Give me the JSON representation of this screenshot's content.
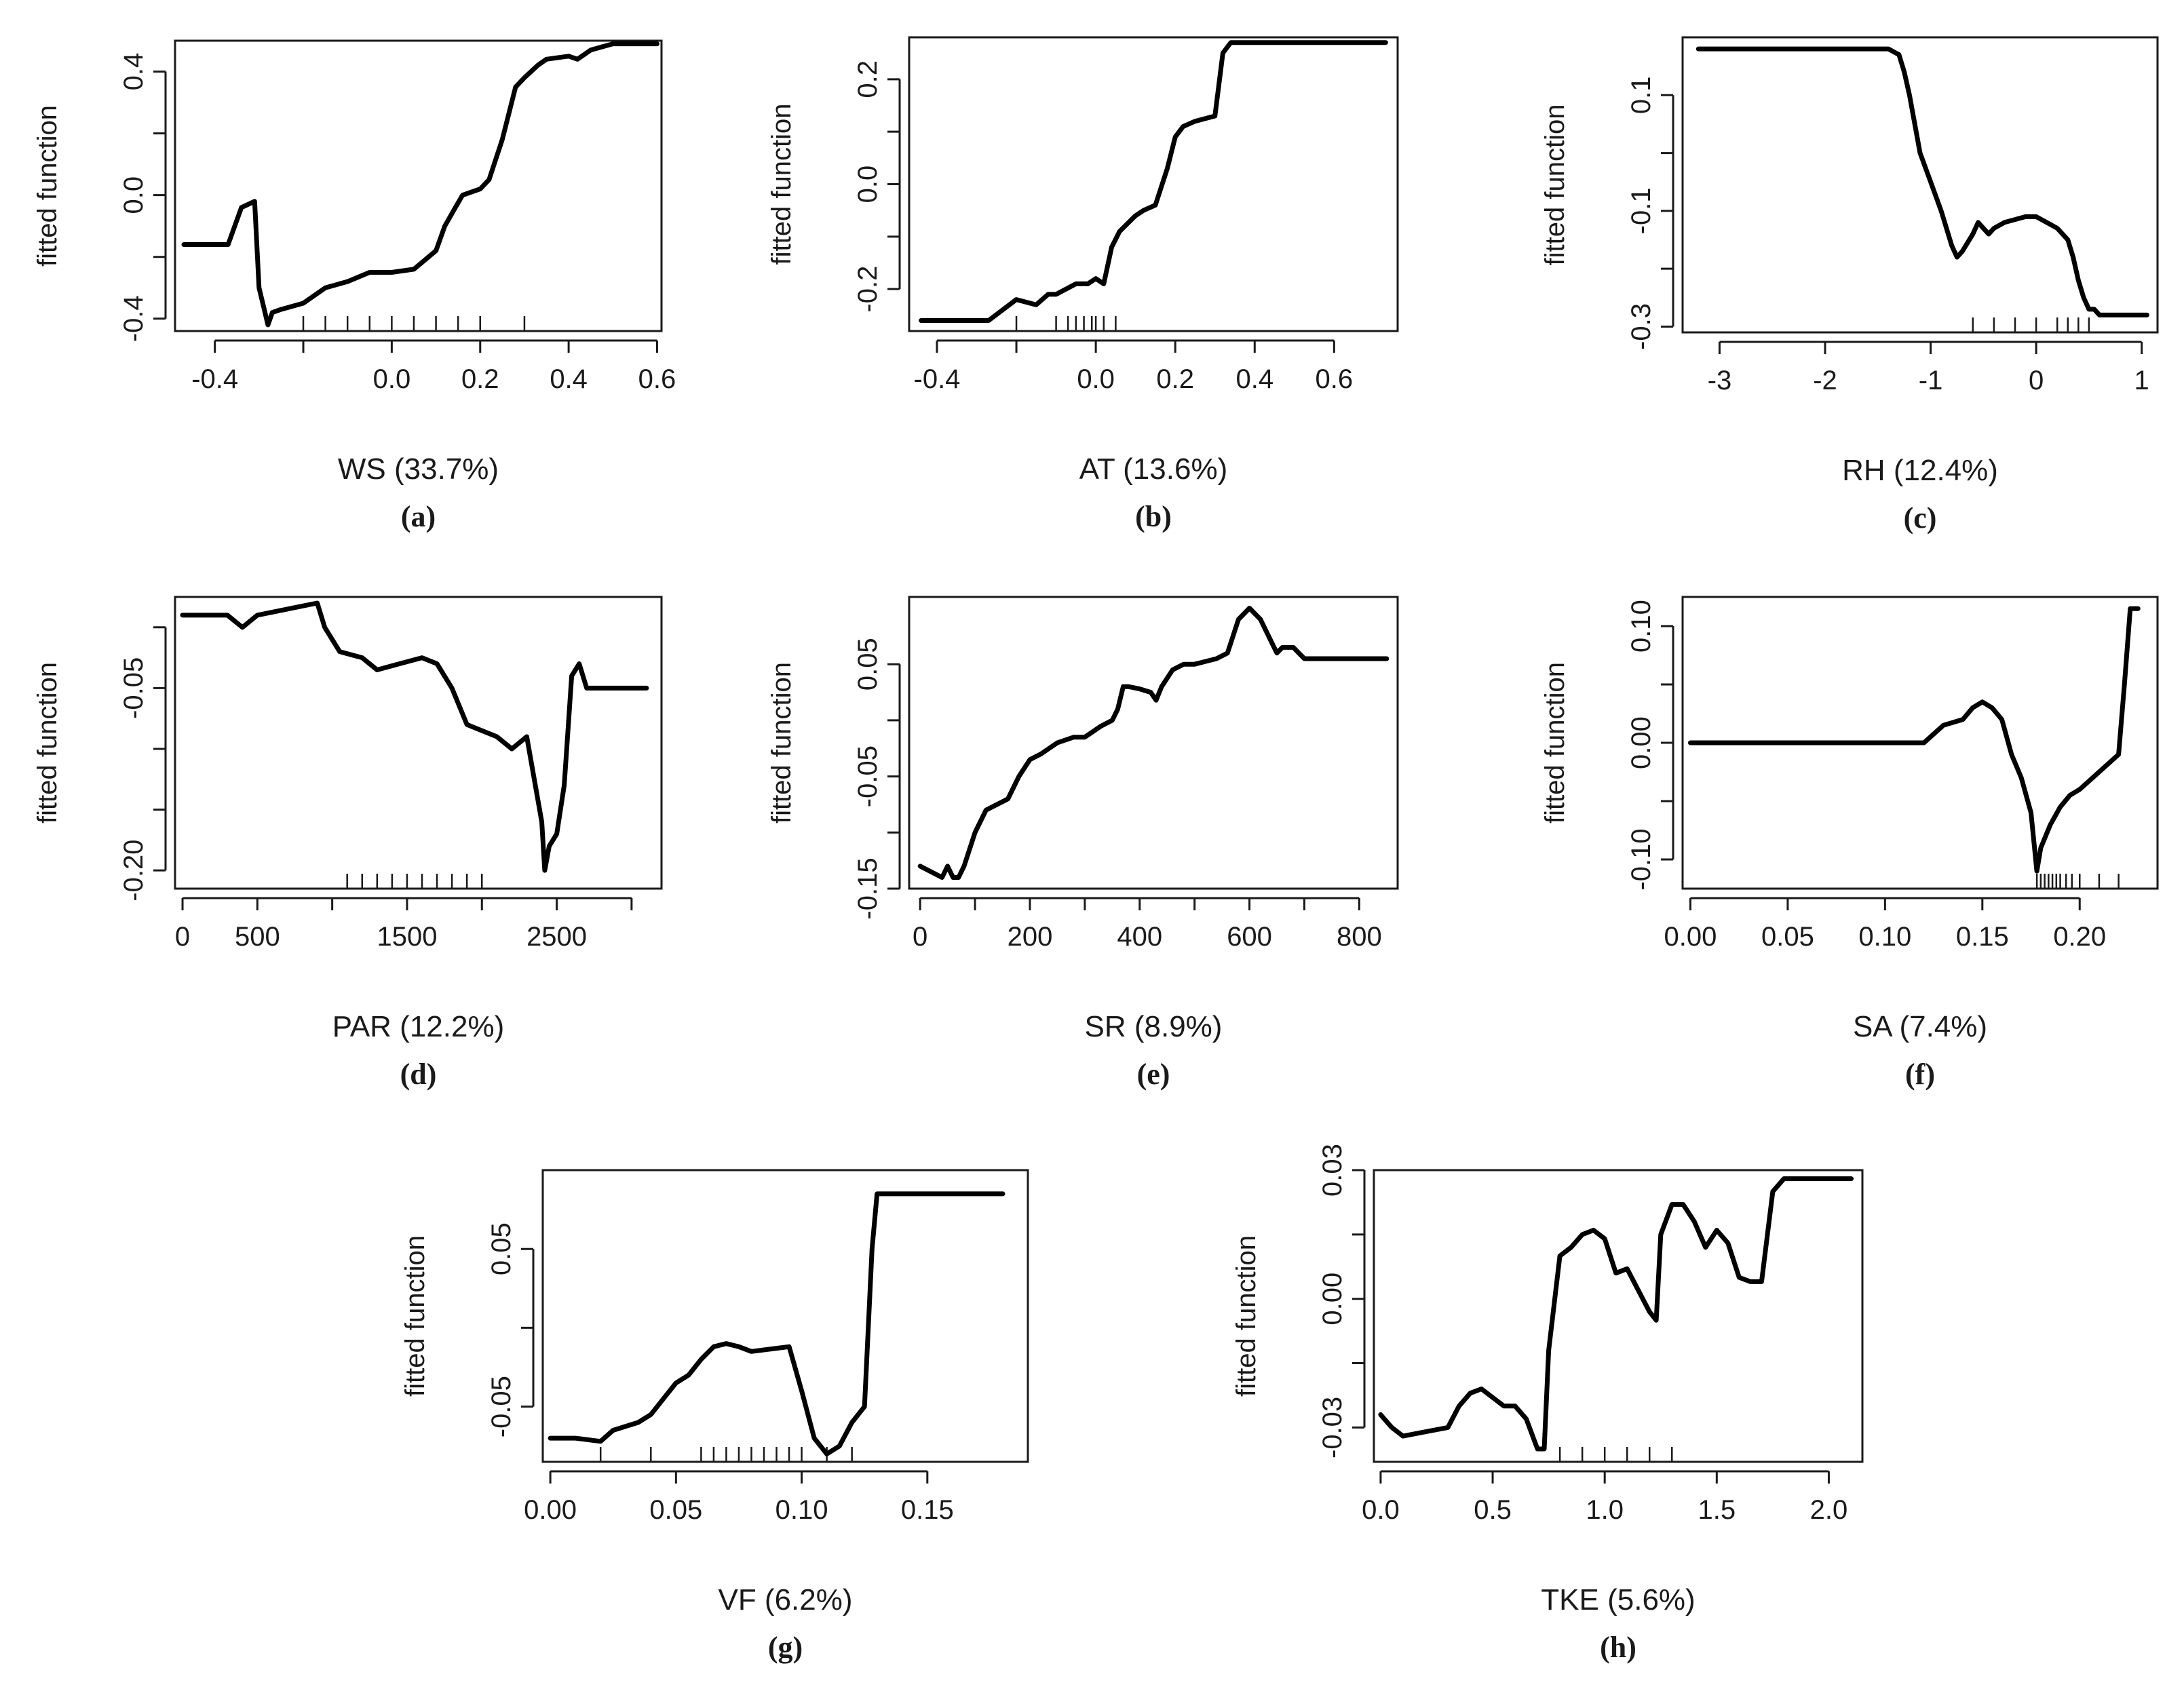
{
  "colors": {
    "line": "#000000",
    "axis": "#1a1a1a",
    "background": "#ffffff"
  },
  "chart_data": [
    {
      "type": "line",
      "panel_label": "(a)",
      "xlabel": "WS  (33.7%)",
      "ylabel": "fitted function",
      "xlim": [
        -0.49,
        0.61
      ],
      "ylim": [
        -0.44,
        0.5
      ],
      "xticks": [
        -0.4,
        -0.2,
        0.0,
        0.2,
        0.4,
        0.6
      ],
      "xtick_labels": [
        "-0.4",
        "",
        "0.0",
        "0.2",
        "0.4",
        "0.6"
      ],
      "yticks": [
        -0.4,
        -0.2,
        0.0,
        0.2,
        0.4
      ],
      "ytick_labels": [
        "-0.4",
        "",
        "0.0",
        "",
        "0.4"
      ],
      "rug": [
        -0.2,
        -0.15,
        -0.1,
        -0.05,
        0.0,
        0.05,
        0.1,
        0.15,
        0.2,
        0.3
      ],
      "x": [
        -0.47,
        -0.37,
        -0.34,
        -0.31,
        -0.3,
        -0.29,
        -0.28,
        -0.27,
        -0.25,
        -0.2,
        -0.15,
        -0.1,
        -0.05,
        0.0,
        0.05,
        0.1,
        0.12,
        0.14,
        0.16,
        0.2,
        0.22,
        0.25,
        0.28,
        0.3,
        0.33,
        0.35,
        0.4,
        0.42,
        0.45,
        0.5,
        0.6
      ],
      "y": [
        -0.16,
        -0.16,
        -0.04,
        -0.02,
        -0.3,
        -0.36,
        -0.42,
        -0.38,
        -0.37,
        -0.35,
        -0.3,
        -0.28,
        -0.25,
        -0.25,
        -0.24,
        -0.18,
        -0.1,
        -0.05,
        0.0,
        0.02,
        0.05,
        0.18,
        0.35,
        0.38,
        0.42,
        0.44,
        0.45,
        0.44,
        0.47,
        0.49,
        0.49
      ]
    },
    {
      "type": "line",
      "panel_label": "(b)",
      "xlabel": "AT  (13.6%)",
      "ylabel": "fitted function",
      "xlim": [
        -0.47,
        0.76
      ],
      "ylim": [
        -0.28,
        0.28
      ],
      "xticks": [
        -0.4,
        -0.2,
        0.0,
        0.2,
        0.4,
        0.6
      ],
      "xtick_labels": [
        "-0.4",
        "",
        "0.0",
        "0.2",
        "0.4",
        "0.6"
      ],
      "yticks": [
        -0.2,
        -0.1,
        0.0,
        0.1,
        0.2
      ],
      "ytick_labels": [
        "-0.2",
        "",
        "0.0",
        "",
        "0.2"
      ],
      "rug": [
        -0.2,
        -0.1,
        -0.07,
        -0.05,
        -0.03,
        -0.01,
        0.0,
        0.02,
        0.05
      ],
      "x": [
        -0.44,
        -0.27,
        -0.2,
        -0.15,
        -0.12,
        -0.1,
        -0.05,
        -0.02,
        0.0,
        0.02,
        0.04,
        0.06,
        0.1,
        0.12,
        0.15,
        0.18,
        0.2,
        0.22,
        0.25,
        0.3,
        0.32,
        0.34,
        0.4,
        0.5,
        0.6,
        0.7,
        0.73
      ],
      "y": [
        -0.26,
        -0.26,
        -0.22,
        -0.23,
        -0.21,
        -0.21,
        -0.19,
        -0.19,
        -0.18,
        -0.19,
        -0.12,
        -0.09,
        -0.06,
        -0.05,
        -0.04,
        0.03,
        0.09,
        0.11,
        0.12,
        0.13,
        0.25,
        0.27,
        0.27,
        0.27,
        0.27,
        0.27,
        0.27
      ]
    },
    {
      "type": "line",
      "panel_label": "(c)",
      "xlabel": "RH  (12.4%)",
      "ylabel": "fitted function",
      "xlim": [
        -3.35,
        1.15
      ],
      "ylim": [
        -0.31,
        0.2
      ],
      "xticks": [
        -3,
        -2,
        -1,
        0,
        1
      ],
      "xtick_labels": [
        "-3",
        "-2",
        "-1",
        "0",
        "1"
      ],
      "yticks": [
        -0.3,
        -0.2,
        -0.1,
        0.0,
        0.1
      ],
      "ytick_labels": [
        "-0.3",
        "",
        "-0.1",
        "",
        "0.1"
      ],
      "rug": [
        -0.6,
        -0.4,
        -0.2,
        0.0,
        0.2,
        0.3,
        0.4,
        0.5
      ],
      "x": [
        -3.2,
        -2.5,
        -2.0,
        -1.5,
        -1.4,
        -1.3,
        -1.25,
        -1.2,
        -1.1,
        -1.0,
        -0.9,
        -0.8,
        -0.75,
        -0.7,
        -0.6,
        -0.55,
        -0.5,
        -0.45,
        -0.4,
        -0.3,
        -0.1,
        0.0,
        0.1,
        0.2,
        0.3,
        0.35,
        0.4,
        0.45,
        0.5,
        0.55,
        0.6,
        0.7,
        0.8,
        1.05
      ],
      "y": [
        0.18,
        0.18,
        0.18,
        0.18,
        0.18,
        0.17,
        0.14,
        0.1,
        0.0,
        -0.05,
        -0.1,
        -0.16,
        -0.18,
        -0.17,
        -0.14,
        -0.12,
        -0.13,
        -0.14,
        -0.13,
        -0.12,
        -0.11,
        -0.11,
        -0.12,
        -0.13,
        -0.15,
        -0.18,
        -0.22,
        -0.25,
        -0.27,
        -0.27,
        -0.28,
        -0.28,
        -0.28,
        -0.28
      ]
    },
    {
      "type": "line",
      "panel_label": "(d)",
      "xlabel": "PAR  (12.2%)",
      "ylabel": "fitted function",
      "xlim": [
        -50,
        3200
      ],
      "ylim": [
        -0.215,
        0.025
      ],
      "xticks": [
        0,
        500,
        1000,
        1500,
        2000,
        2500,
        3000
      ],
      "xtick_labels": [
        "0",
        "500",
        "",
        "1500",
        "",
        "2500",
        ""
      ],
      "yticks": [
        -0.2,
        -0.15,
        -0.1,
        -0.05,
        0.0
      ],
      "ytick_labels": [
        "-0.20",
        "",
        "",
        "-0.05",
        ""
      ],
      "rug": [
        1100,
        1200,
        1300,
        1400,
        1500,
        1600,
        1700,
        1800,
        1900,
        2000
      ],
      "x": [
        0,
        300,
        400,
        500,
        700,
        900,
        950,
        1050,
        1200,
        1300,
        1450,
        1600,
        1700,
        1800,
        1900,
        2000,
        2100,
        2200,
        2300,
        2400,
        2420,
        2450,
        2500,
        2550,
        2600,
        2650,
        2700,
        2800,
        3100
      ],
      "y": [
        0.01,
        0.01,
        0.0,
        0.01,
        0.015,
        0.02,
        0.0,
        -0.02,
        -0.025,
        -0.035,
        -0.03,
        -0.025,
        -0.03,
        -0.05,
        -0.08,
        -0.085,
        -0.09,
        -0.1,
        -0.09,
        -0.16,
        -0.2,
        -0.18,
        -0.17,
        -0.13,
        -0.04,
        -0.03,
        -0.05,
        -0.05,
        -0.05
      ]
    },
    {
      "type": "line",
      "panel_label": "(e)",
      "xlabel": "SR  (8.9%)",
      "ylabel": "fitted function",
      "xlim": [
        -20,
        870
      ],
      "ylim": [
        -0.15,
        0.11
      ],
      "xticks": [
        0,
        100,
        200,
        300,
        400,
        500,
        600,
        700,
        800
      ],
      "xtick_labels": [
        "0",
        "",
        "200",
        "",
        "400",
        "",
        "600",
        "",
        "800"
      ],
      "yticks": [
        -0.15,
        -0.1,
        -0.05,
        0.0,
        0.05
      ],
      "ytick_labels": [
        "-0.15",
        "",
        "-0.05",
        "",
        "0.05"
      ],
      "rug": [],
      "x": [
        0,
        20,
        40,
        50,
        60,
        70,
        80,
        100,
        120,
        140,
        160,
        180,
        200,
        220,
        250,
        280,
        300,
        330,
        350,
        360,
        370,
        380,
        400,
        420,
        430,
        440,
        460,
        480,
        500,
        540,
        560,
        580,
        600,
        620,
        640,
        650,
        660,
        680,
        700,
        720,
        850
      ],
      "y": [
        -0.13,
        -0.135,
        -0.14,
        -0.13,
        -0.14,
        -0.14,
        -0.13,
        -0.1,
        -0.08,
        -0.075,
        -0.07,
        -0.05,
        -0.035,
        -0.03,
        -0.02,
        -0.015,
        -0.015,
        -0.005,
        0.0,
        0.01,
        0.03,
        0.03,
        0.028,
        0.025,
        0.018,
        0.03,
        0.045,
        0.05,
        0.05,
        0.055,
        0.06,
        0.09,
        0.1,
        0.09,
        0.07,
        0.06,
        0.065,
        0.065,
        0.055,
        0.055,
        0.055
      ]
    },
    {
      "type": "line",
      "panel_label": "(f)",
      "xlabel": "SA  (7.4%)",
      "ylabel": "fitted function",
      "xlim": [
        -0.004,
        0.24
      ],
      "ylim": [
        -0.125,
        0.125
      ],
      "xticks": [
        0.0,
        0.05,
        0.1,
        0.15,
        0.2
      ],
      "xtick_labels": [
        "0.00",
        "0.05",
        "0.10",
        "0.15",
        "0.20"
      ],
      "yticks": [
        -0.1,
        -0.05,
        0.0,
        0.05,
        0.1
      ],
      "ytick_labels": [
        "-0.10",
        "",
        "0.00",
        "",
        "0.10"
      ],
      "rug": [
        0.178,
        0.18,
        0.182,
        0.184,
        0.186,
        0.188,
        0.19,
        0.193,
        0.196,
        0.2,
        0.21,
        0.22
      ],
      "x": [
        0.0,
        0.05,
        0.1,
        0.12,
        0.13,
        0.14,
        0.145,
        0.15,
        0.155,
        0.16,
        0.165,
        0.17,
        0.175,
        0.178,
        0.18,
        0.185,
        0.19,
        0.195,
        0.2,
        0.21,
        0.22,
        0.223,
        0.226,
        0.23
      ],
      "y": [
        0.0,
        0.0,
        0.0,
        0.0,
        0.015,
        0.02,
        0.03,
        0.035,
        0.03,
        0.02,
        -0.01,
        -0.03,
        -0.06,
        -0.11,
        -0.09,
        -0.07,
        -0.055,
        -0.045,
        -0.04,
        -0.025,
        -0.01,
        0.05,
        0.115,
        0.115
      ]
    },
    {
      "type": "line",
      "panel_label": "(g)",
      "xlabel": "VF  (6.2%)",
      "ylabel": "fitted function",
      "xlim": [
        -0.003,
        0.19
      ],
      "ylim": [
        -0.085,
        0.1
      ],
      "xticks": [
        0.0,
        0.05,
        0.1,
        0.15
      ],
      "xtick_labels": [
        "0.00",
        "0.05",
        "0.10",
        "0.15"
      ],
      "yticks": [
        -0.05,
        0.0,
        0.05
      ],
      "ytick_labels": [
        "-0.05",
        "",
        "0.05"
      ],
      "rug": [
        0.02,
        0.04,
        0.06,
        0.065,
        0.07,
        0.075,
        0.08,
        0.085,
        0.09,
        0.095,
        0.1,
        0.11,
        0.12
      ],
      "x": [
        0.0,
        0.01,
        0.02,
        0.025,
        0.035,
        0.04,
        0.045,
        0.05,
        0.055,
        0.06,
        0.065,
        0.07,
        0.075,
        0.08,
        0.09,
        0.095,
        0.1,
        0.105,
        0.11,
        0.115,
        0.12,
        0.125,
        0.128,
        0.13,
        0.135,
        0.15,
        0.18
      ],
      "y": [
        -0.07,
        -0.07,
        -0.072,
        -0.065,
        -0.06,
        -0.055,
        -0.045,
        -0.035,
        -0.03,
        -0.02,
        -0.012,
        -0.01,
        -0.012,
        -0.015,
        -0.013,
        -0.012,
        -0.04,
        -0.07,
        -0.08,
        -0.075,
        -0.06,
        -0.05,
        0.05,
        0.085,
        0.085,
        0.085,
        0.085
      ]
    },
    {
      "type": "line",
      "panel_label": "(h)",
      "xlabel": "TKE  (5.6%)",
      "ylabel": "fitted function",
      "xlim": [
        -0.03,
        2.15
      ],
      "ylim": [
        -0.038,
        0.03
      ],
      "xticks": [
        0.0,
        0.5,
        1.0,
        1.5,
        2.0
      ],
      "xtick_labels": [
        "0.0",
        "0.5",
        "1.0",
        "1.5",
        "2.0"
      ],
      "yticks": [
        -0.03,
        -0.015,
        0.0,
        0.015,
        0.03
      ],
      "ytick_labels": [
        "-0.03",
        "",
        "0.00",
        "",
        "0.03"
      ],
      "rug": [
        0.8,
        0.9,
        1.0,
        1.1,
        1.2,
        1.3
      ],
      "x": [
        0.0,
        0.05,
        0.1,
        0.2,
        0.3,
        0.35,
        0.4,
        0.45,
        0.5,
        0.55,
        0.6,
        0.65,
        0.7,
        0.73,
        0.75,
        0.8,
        0.85,
        0.9,
        0.95,
        1.0,
        1.05,
        1.1,
        1.15,
        1.2,
        1.23,
        1.25,
        1.3,
        1.35,
        1.4,
        1.45,
        1.5,
        1.55,
        1.6,
        1.65,
        1.7,
        1.75,
        1.8,
        2.1
      ],
      "y": [
        -0.027,
        -0.03,
        -0.032,
        -0.031,
        -0.03,
        -0.025,
        -0.022,
        -0.021,
        -0.023,
        -0.025,
        -0.025,
        -0.028,
        -0.035,
        -0.035,
        -0.012,
        0.01,
        0.012,
        0.015,
        0.016,
        0.014,
        0.006,
        0.007,
        0.002,
        -0.003,
        -0.005,
        0.015,
        0.022,
        0.022,
        0.018,
        0.012,
        0.016,
        0.013,
        0.005,
        0.004,
        0.004,
        0.025,
        0.028,
        0.028
      ]
    }
  ]
}
